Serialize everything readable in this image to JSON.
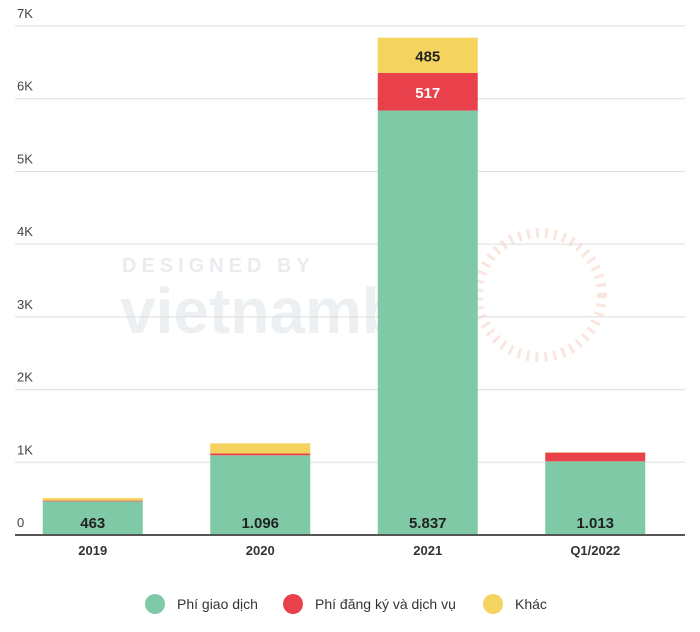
{
  "chart_data": {
    "type": "bar",
    "stacked": true,
    "categories": [
      "2019",
      "2020",
      "2021",
      "Q1/2022"
    ],
    "series": [
      {
        "name": "Phí giao dịch",
        "color": "#80c9a7",
        "values": [
          463,
          1096,
          5837,
          1013
        ]
      },
      {
        "name": "Phí đăng ký và dịch vụ",
        "color": "#e9414b",
        "values": [
          10,
          25,
          517,
          120
        ]
      },
      {
        "name": "Khác",
        "color": "#f4d35e",
        "values": [
          35,
          140,
          485,
          5
        ]
      }
    ],
    "data_labels": {
      "2019": {
        "Phí giao dịch": "463"
      },
      "2020": {
        "Phí giao dịch": "1.096"
      },
      "2021": {
        "Phí giao dịch": "5.837",
        "Phí đăng ký và dịch vụ": "517",
        "Khác": "485"
      },
      "Q1/2022": {
        "Phí giao dịch": "1.013"
      }
    },
    "y_ticks": [
      0,
      1000,
      2000,
      3000,
      4000,
      5000,
      6000,
      7000
    ],
    "y_tick_labels": [
      "0",
      "1K",
      "2K",
      "3K",
      "4K",
      "5K",
      "6K",
      "7K"
    ],
    "ylim": [
      0,
      7000
    ],
    "grid": true,
    "legend_position": "bottom-center",
    "title": "",
    "xlabel": "",
    "ylabel": ""
  },
  "watermark": {
    "line1": "DESIGNED BY",
    "line2": "vietnambiz"
  }
}
